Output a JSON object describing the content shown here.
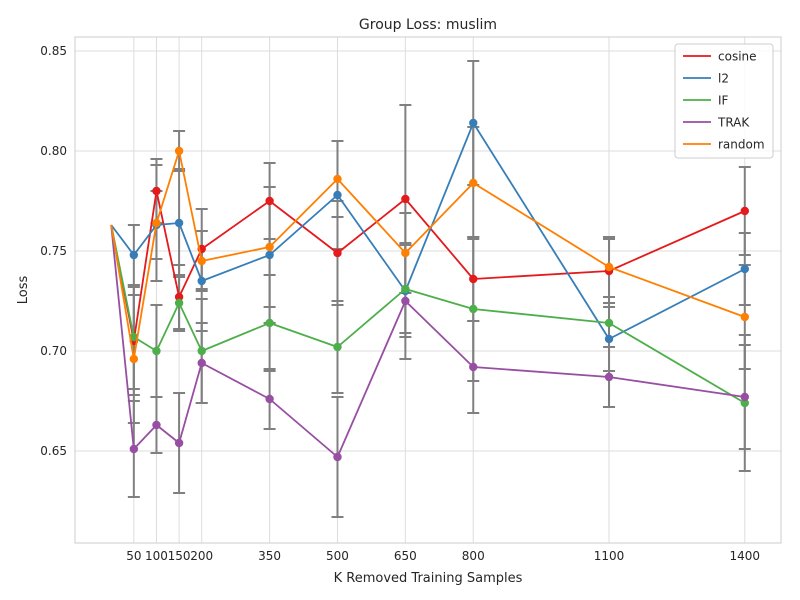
{
  "chart_data": {
    "type": "line",
    "title": "Group Loss: muslim",
    "xlabel": "K Removed Training Samples",
    "ylabel": "Loss",
    "x_ticks": [
      50,
      100,
      150,
      200,
      350,
      500,
      650,
      800,
      1100,
      1400
    ],
    "y_ticks": [
      "0.65",
      "0.70",
      "0.75",
      "0.80",
      "0.85"
    ],
    "xlim": [
      -80,
      1480
    ],
    "ylim": [
      0.604,
      0.857
    ],
    "grid": true,
    "legend_position": "top-right",
    "baseline": {
      "x": 0,
      "y": 0.763
    },
    "x": [
      50,
      100,
      150,
      200,
      350,
      500,
      650,
      800,
      1100,
      1400
    ],
    "series": [
      {
        "name": "cosine",
        "color": "#e41a1c",
        "values": [
          0.705,
          0.78,
          0.727,
          0.751,
          0.775,
          0.749,
          0.776,
          0.736,
          0.74,
          0.77
        ],
        "err": [
          0.027,
          0.016,
          0.016,
          0.02,
          0.019,
          0.026,
          0.047,
          0.021,
          0.016,
          0.022
        ]
      },
      {
        "name": "l2",
        "color": "#377eb8",
        "values": [
          0.748,
          0.763,
          0.764,
          0.735,
          0.748,
          0.778,
          0.73,
          0.814,
          0.706,
          0.741
        ],
        "err": [
          0.015,
          0.017,
          0.027,
          0.025,
          0.034,
          0.027,
          0.023,
          0.031,
          0.016,
          0.018
        ]
      },
      {
        "name": "IF",
        "color": "#4daf4a",
        "values": [
          0.707,
          0.7,
          0.724,
          0.7,
          0.714,
          0.702,
          0.731,
          0.721,
          0.714,
          0.674
        ],
        "err": [
          0.026,
          0.023,
          0.014,
          0.026,
          0.024,
          0.023,
          0.022,
          0.036,
          0.042,
          0.034
        ]
      },
      {
        "name": "TRAK",
        "color": "#984ea3",
        "values": [
          0.651,
          0.663,
          0.654,
          0.694,
          0.676,
          0.647,
          0.725,
          0.692,
          0.687,
          0.677
        ],
        "err": [
          0.024,
          0.014,
          0.025,
          0.02,
          0.015,
          0.03,
          0.029,
          0.023,
          0.015,
          0.026
        ]
      },
      {
        "name": "random",
        "color": "#ff7f00",
        "values": [
          0.696,
          0.764,
          0.8,
          0.745,
          0.752,
          0.786,
          0.749,
          0.784,
          0.742,
          0.717
        ],
        "err": [
          0.032,
          0.029,
          0.01,
          0.015,
          0.03,
          0.019,
          0.02,
          0.028,
          0.015,
          0.026
        ]
      }
    ]
  }
}
